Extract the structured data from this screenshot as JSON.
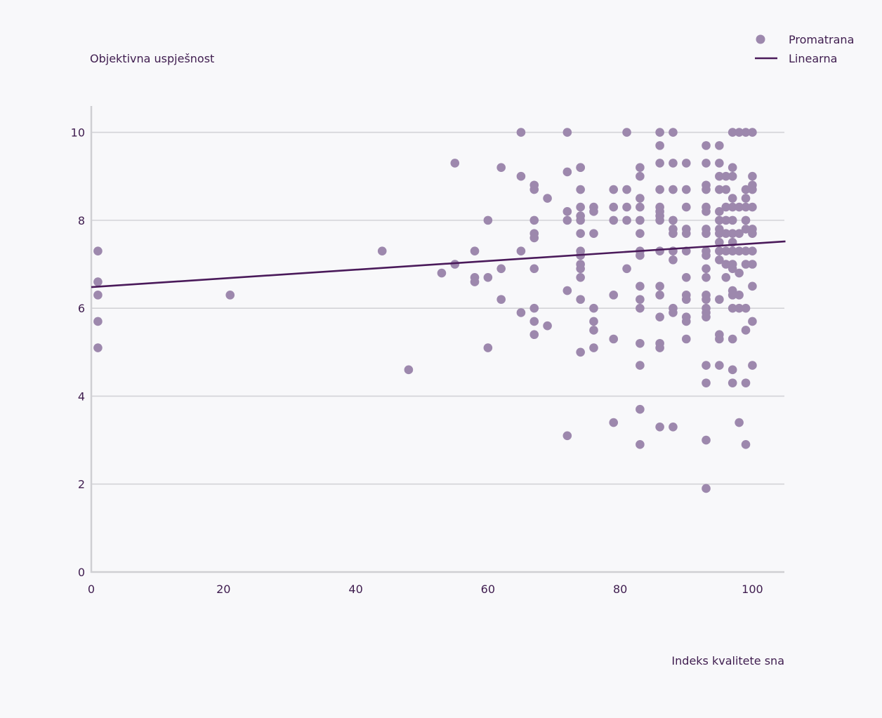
{
  "colors": {
    "background": "#f8f8fa",
    "point": "#9d88ad",
    "line": "#4a1a5a",
    "grid": "#d3d3d7",
    "axis": "#cfcfd3",
    "text": "#3f1d4f"
  },
  "chart_data": {
    "type": "scatter",
    "xlabel": "Indeks kvalitete sna",
    "ylabel": "Objektivna uspješnost",
    "xlim": [
      0,
      105
    ],
    "ylim": [
      0,
      10.6
    ],
    "xticks": [
      0,
      20,
      40,
      60,
      80,
      100
    ],
    "yticks": [
      0,
      2,
      4,
      6,
      8,
      10
    ],
    "legend_position": "top-right",
    "grid": "horizontal",
    "series": [
      {
        "name": "Promatrana",
        "kind": "scatter",
        "points": [
          [
            1,
            7.3
          ],
          [
            1,
            6.6
          ],
          [
            1,
            6.3
          ],
          [
            1,
            5.7
          ],
          [
            1,
            5.1
          ],
          [
            21,
            6.3
          ],
          [
            44,
            7.3
          ],
          [
            48,
            4.6
          ],
          [
            53,
            6.8
          ],
          [
            55,
            7.0
          ],
          [
            55,
            9.3
          ],
          [
            58,
            7.3
          ],
          [
            58,
            6.7
          ],
          [
            58,
            6.6
          ],
          [
            60,
            8.0
          ],
          [
            60,
            6.7
          ],
          [
            60,
            5.1
          ],
          [
            62,
            9.2
          ],
          [
            62,
            6.9
          ],
          [
            62,
            6.2
          ],
          [
            65,
            10.0
          ],
          [
            65,
            9.0
          ],
          [
            65,
            7.3
          ],
          [
            65,
            5.9
          ],
          [
            67,
            8.8
          ],
          [
            67,
            8.7
          ],
          [
            67,
            8.0
          ],
          [
            67,
            7.7
          ],
          [
            67,
            7.6
          ],
          [
            67,
            6.9
          ],
          [
            67,
            6.0
          ],
          [
            67,
            5.7
          ],
          [
            67,
            5.4
          ],
          [
            69,
            8.5
          ],
          [
            69,
            5.6
          ],
          [
            72,
            10.0
          ],
          [
            72,
            9.1
          ],
          [
            72,
            8.2
          ],
          [
            72,
            8.0
          ],
          [
            72,
            6.4
          ],
          [
            72,
            3.1
          ],
          [
            74,
            9.2
          ],
          [
            74,
            9.2
          ],
          [
            74,
            8.7
          ],
          [
            74,
            8.3
          ],
          [
            74,
            8.1
          ],
          [
            74,
            8.0
          ],
          [
            74,
            7.7
          ],
          [
            74,
            7.3
          ],
          [
            74,
            7.2
          ],
          [
            74,
            7.0
          ],
          [
            74,
            6.9
          ],
          [
            74,
            6.7
          ],
          [
            74,
            6.2
          ],
          [
            74,
            5.0
          ],
          [
            76,
            8.3
          ],
          [
            76,
            8.2
          ],
          [
            76,
            7.7
          ],
          [
            76,
            6.0
          ],
          [
            76,
            5.7
          ],
          [
            76,
            5.5
          ],
          [
            76,
            5.1
          ],
          [
            79,
            8.7
          ],
          [
            79,
            8.3
          ],
          [
            79,
            8.0
          ],
          [
            79,
            6.3
          ],
          [
            79,
            5.3
          ],
          [
            79,
            3.4
          ],
          [
            81,
            10.0
          ],
          [
            81,
            8.7
          ],
          [
            81,
            8.3
          ],
          [
            81,
            8.0
          ],
          [
            81,
            6.9
          ],
          [
            83,
            9.2
          ],
          [
            83,
            9.0
          ],
          [
            83,
            8.5
          ],
          [
            83,
            8.3
          ],
          [
            83,
            8.0
          ],
          [
            83,
            7.7
          ],
          [
            83,
            7.3
          ],
          [
            83,
            7.2
          ],
          [
            83,
            6.5
          ],
          [
            83,
            6.2
          ],
          [
            83,
            6.0
          ],
          [
            83,
            5.2
          ],
          [
            83,
            4.7
          ],
          [
            83,
            3.7
          ],
          [
            83,
            2.9
          ],
          [
            86,
            10.0
          ],
          [
            86,
            9.7
          ],
          [
            86,
            9.3
          ],
          [
            86,
            8.7
          ],
          [
            86,
            8.3
          ],
          [
            86,
            8.2
          ],
          [
            86,
            8.1
          ],
          [
            86,
            8.0
          ],
          [
            86,
            7.3
          ],
          [
            86,
            6.5
          ],
          [
            86,
            6.3
          ],
          [
            86,
            5.8
          ],
          [
            86,
            5.2
          ],
          [
            86,
            5.1
          ],
          [
            86,
            3.3
          ],
          [
            88,
            10.0
          ],
          [
            88,
            9.3
          ],
          [
            88,
            8.7
          ],
          [
            88,
            8.0
          ],
          [
            88,
            7.8
          ],
          [
            88,
            7.7
          ],
          [
            88,
            7.3
          ],
          [
            88,
            7.1
          ],
          [
            88,
            6.0
          ],
          [
            88,
            5.9
          ],
          [
            88,
            3.3
          ],
          [
            90,
            9.3
          ],
          [
            90,
            8.7
          ],
          [
            90,
            8.3
          ],
          [
            90,
            7.8
          ],
          [
            90,
            7.7
          ],
          [
            90,
            7.3
          ],
          [
            90,
            6.7
          ],
          [
            90,
            6.3
          ],
          [
            90,
            6.2
          ],
          [
            90,
            5.8
          ],
          [
            90,
            5.7
          ],
          [
            90,
            5.3
          ],
          [
            93,
            9.7
          ],
          [
            93,
            9.3
          ],
          [
            93,
            8.8
          ],
          [
            93,
            8.7
          ],
          [
            93,
            8.3
          ],
          [
            93,
            8.2
          ],
          [
            93,
            7.8
          ],
          [
            93,
            7.7
          ],
          [
            93,
            7.3
          ],
          [
            93,
            7.2
          ],
          [
            93,
            6.9
          ],
          [
            93,
            6.7
          ],
          [
            93,
            6.3
          ],
          [
            93,
            6.2
          ],
          [
            93,
            6.0
          ],
          [
            93,
            5.9
          ],
          [
            93,
            5.8
          ],
          [
            93,
            4.7
          ],
          [
            93,
            4.3
          ],
          [
            93,
            3.0
          ],
          [
            93,
            1.9
          ],
          [
            95,
            9.7
          ],
          [
            95,
            9.3
          ],
          [
            95,
            9.0
          ],
          [
            95,
            8.7
          ],
          [
            95,
            8.2
          ],
          [
            95,
            8.0
          ],
          [
            95,
            7.8
          ],
          [
            95,
            7.7
          ],
          [
            95,
            7.5
          ],
          [
            95,
            7.3
          ],
          [
            95,
            7.1
          ],
          [
            95,
            6.2
          ],
          [
            95,
            5.4
          ],
          [
            95,
            5.3
          ],
          [
            95,
            4.7
          ],
          [
            96,
            9.0
          ],
          [
            96,
            8.7
          ],
          [
            96,
            8.3
          ],
          [
            96,
            8.0
          ],
          [
            96,
            7.7
          ],
          [
            96,
            7.3
          ],
          [
            96,
            7.0
          ],
          [
            96,
            6.7
          ],
          [
            97,
            10.0
          ],
          [
            97,
            9.2
          ],
          [
            97,
            9.0
          ],
          [
            97,
            8.5
          ],
          [
            97,
            8.3
          ],
          [
            97,
            8.0
          ],
          [
            97,
            7.7
          ],
          [
            97,
            7.5
          ],
          [
            97,
            7.3
          ],
          [
            97,
            7.0
          ],
          [
            97,
            6.9
          ],
          [
            97,
            6.4
          ],
          [
            97,
            6.3
          ],
          [
            97,
            6.0
          ],
          [
            97,
            5.3
          ],
          [
            97,
            4.6
          ],
          [
            97,
            4.3
          ],
          [
            98,
            10.0
          ],
          [
            98,
            8.3
          ],
          [
            98,
            7.7
          ],
          [
            98,
            7.3
          ],
          [
            98,
            6.8
          ],
          [
            98,
            6.3
          ],
          [
            98,
            6.0
          ],
          [
            98,
            3.4
          ],
          [
            99,
            10.0
          ],
          [
            99,
            8.7
          ],
          [
            99,
            8.5
          ],
          [
            99,
            8.3
          ],
          [
            99,
            8.0
          ],
          [
            99,
            7.8
          ],
          [
            99,
            7.3
          ],
          [
            99,
            7.0
          ],
          [
            99,
            6.0
          ],
          [
            99,
            5.5
          ],
          [
            99,
            4.3
          ],
          [
            99,
            2.9
          ],
          [
            100,
            10.0
          ],
          [
            100,
            9.0
          ],
          [
            100,
            8.8
          ],
          [
            100,
            8.7
          ],
          [
            100,
            8.3
          ],
          [
            100,
            7.8
          ],
          [
            100,
            7.7
          ],
          [
            100,
            7.3
          ],
          [
            100,
            7.0
          ],
          [
            100,
            6.5
          ],
          [
            100,
            5.7
          ],
          [
            100,
            4.7
          ]
        ]
      },
      {
        "name": "Linearna",
        "kind": "line",
        "x": [
          0,
          105
        ],
        "y": [
          6.48,
          7.52
        ]
      }
    ]
  }
}
